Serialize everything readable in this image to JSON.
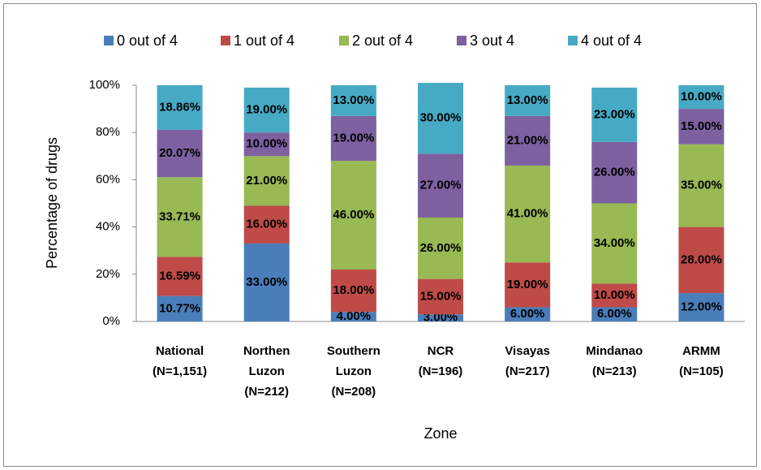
{
  "chart_data": {
    "type": "stacked_bar",
    "categories": [
      [
        "National",
        "(N=1,151)"
      ],
      [
        "Northen",
        "Luzon",
        "(N=212)"
      ],
      [
        "Southern",
        "Luzon",
        "(N=208)"
      ],
      [
        "NCR",
        "(N=196)"
      ],
      [
        "Visayas",
        "(N=217)"
      ],
      [
        "Mindanao",
        "(N=213)"
      ],
      [
        "ARMM",
        "(N=105)"
      ]
    ],
    "series": [
      {
        "name": "0 out of 4",
        "color": "#4a7ebb",
        "values": [
          10.77,
          33,
          4,
          3,
          6,
          6,
          12
        ],
        "value_labels": [
          "10.77%",
          "33.00%",
          "4.00%",
          "3.00%",
          "6.00%",
          "6.00%",
          "12.00%"
        ]
      },
      {
        "name": "1 out of 4",
        "color": "#be4b48",
        "values": [
          16.59,
          16,
          18,
          15,
          19,
          10,
          28
        ],
        "value_labels": [
          "16.59%",
          "16.00%",
          "18.00%",
          "15.00%",
          "19.00%",
          "10.00%",
          "28.00%"
        ]
      },
      {
        "name": "2 out of 4",
        "color": "#98b954",
        "values": [
          33.71,
          21,
          46,
          26,
          41,
          34,
          35
        ],
        "value_labels": [
          "33.71%",
          "21.00%",
          "46.00%",
          "26.00%",
          "41.00%",
          "34.00%",
          "35.00%"
        ]
      },
      {
        "name": "3 out 4",
        "color": "#7d60a0",
        "values": [
          20.07,
          10,
          19,
          27,
          21,
          26,
          15
        ],
        "value_labels": [
          "20.07%",
          "10.00%",
          "19.00%",
          "27.00%",
          "21.00%",
          "26.00%",
          "15.00%"
        ]
      },
      {
        "name": "4 out of 4",
        "color": "#46aac5",
        "values": [
          18.86,
          19,
          13,
          30,
          13,
          23,
          10
        ],
        "value_labels": [
          "18.86%",
          "19.00%",
          "13.00%",
          "30.00%",
          "13.00%",
          "23.00%",
          "10.00%"
        ]
      }
    ],
    "ylabel": "Percentage of drugs",
    "xlabel": "Zone",
    "ylim": [
      0,
      100
    ],
    "yticks": [
      {
        "value": 0,
        "label": "0%"
      },
      {
        "value": 20,
        "label": "20%"
      },
      {
        "value": 40,
        "label": "40%"
      },
      {
        "value": 60,
        "label": "60%"
      },
      {
        "value": 80,
        "label": "80%"
      },
      {
        "value": 100,
        "label": "100%"
      }
    ],
    "legend": "top"
  }
}
